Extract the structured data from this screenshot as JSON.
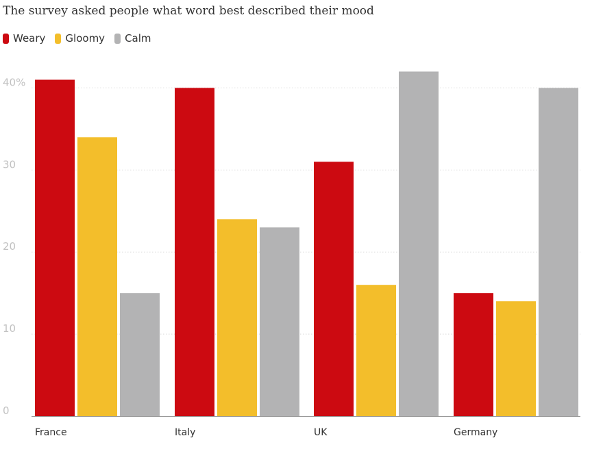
{
  "chart_data": {
    "type": "bar",
    "title": "The survey asked people what word best described their mood",
    "categories": [
      "France",
      "Italy",
      "UK",
      "Germany"
    ],
    "series": [
      {
        "name": "Weary",
        "color": "#cc0a11",
        "values": [
          41,
          40,
          31,
          15
        ]
      },
      {
        "name": "Gloomy",
        "color": "#f3be2b",
        "values": [
          34,
          24,
          16,
          14
        ]
      },
      {
        "name": "Calm",
        "color": "#b3b3b4",
        "values": [
          15,
          23,
          42,
          40
        ]
      }
    ],
    "yticks": [
      {
        "value": 0,
        "label": "0"
      },
      {
        "value": 10,
        "label": "10"
      },
      {
        "value": 20,
        "label": "20"
      },
      {
        "value": 30,
        "label": "30"
      },
      {
        "value": 40,
        "label": "40%"
      }
    ],
    "ylim": [
      0,
      42
    ],
    "xlabel": "",
    "ylabel": "",
    "grid": true,
    "legend_position": "top-left"
  }
}
